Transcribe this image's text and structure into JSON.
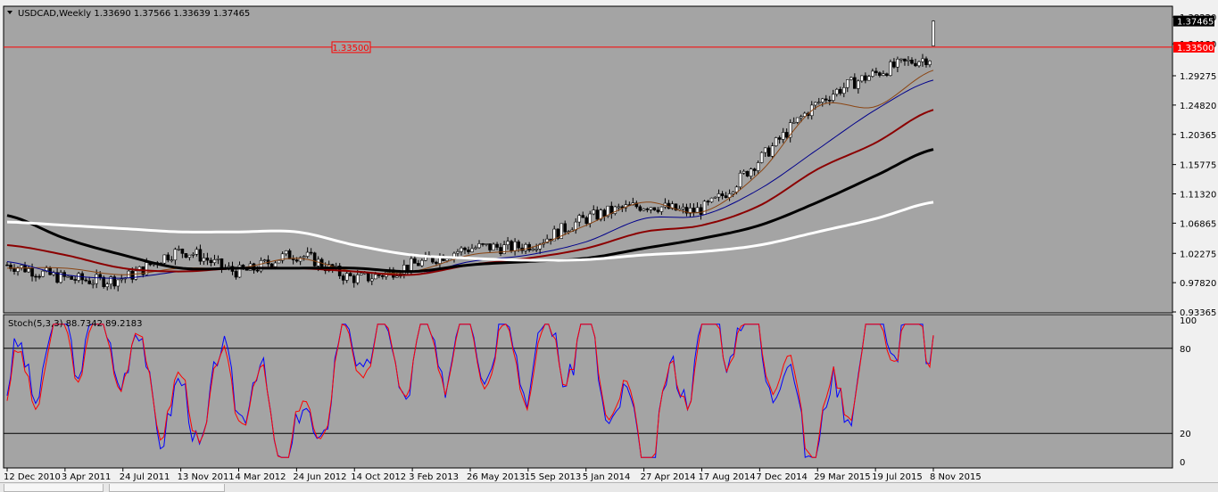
{
  "colors": {
    "background": "#a4a4a4",
    "bull_candle": "#ffffff",
    "bear_candle": "#000000",
    "horizontal_line": "#ff0000",
    "ma_thin": "#8b4513",
    "ma_blue": "#00008b",
    "ma_darkred": "#8b0000",
    "ma_black": "#000000",
    "ma_white": "#ffffff",
    "stoch_main": "#0000ff",
    "stoch_signal": "#ff0000"
  },
  "price_header": "USDCAD,Weekly  1.33690 1.37566 1.33639 1.37465",
  "price_axis": {
    "ticks": [
      "1.38220",
      "1.34130",
      "1.29275",
      "1.24820",
      "1.20365",
      "1.15775",
      "1.11320",
      "1.06865",
      "1.02275",
      "0.97820",
      "0.93365"
    ],
    "current_price_label": "1.37465",
    "hline_label": "1.33500",
    "hline_axis_label": "1.33500"
  },
  "stoch_header": "Stoch(5,3,3) 88.7342 89.2183",
  "stoch_axis": {
    "ticks": [
      "100",
      "80",
      "20",
      "0"
    ]
  },
  "time_axis": {
    "ticks": [
      "12 Dec 2010",
      "3 Apr 2011",
      "24 Jul 2011",
      "13 Nov 2011",
      "4 Mar 2012",
      "24 Jun 2012",
      "14 Oct 2012",
      "3 Feb 2013",
      "26 May 2013",
      "15 Sep 2013",
      "5 Jan 2014",
      "27 Apr 2014",
      "17 Aug 2014",
      "7 Dec 2014",
      "29 Mar 2015",
      "19 Jul 2015",
      "8 Nov 2015"
    ]
  },
  "chart_data": [
    {
      "type": "candlestick",
      "symbol": "USDCAD",
      "timeframe": "Weekly",
      "last_bar": {
        "open": 1.3369,
        "high": 1.37566,
        "low": 1.33639,
        "close": 1.37465
      },
      "ylim": [
        0.9336,
        1.3822
      ],
      "horizontal_line": 1.335,
      "x_dates": [
        "12 Dec 2010",
        "3 Apr 2011",
        "24 Jul 2011",
        "13 Nov 2011",
        "4 Mar 2012",
        "24 Jun 2012",
        "14 Oct 2012",
        "3 Feb 2013",
        "26 May 2013",
        "15 Sep 2013",
        "5 Jan 2014",
        "27 Apr 2014",
        "17 Aug 2014",
        "7 Dec 2014",
        "29 Mar 2015",
        "19 Jul 2015",
        "8 Nov 2015"
      ],
      "close_at_ticks": [
        1.005,
        0.985,
        0.985,
        1.025,
        0.995,
        1.02,
        0.985,
        1.005,
        1.03,
        1.035,
        1.075,
        1.095,
        1.09,
        1.165,
        1.25,
        1.295,
        1.32
      ],
      "moving_averages": [
        {
          "color": "#8b4513",
          "values": [
            1.0,
            1.0,
            0.99,
            1.0,
            1.0,
            1.015,
            0.995,
            0.995,
            1.02,
            1.03,
            1.065,
            1.1,
            1.085,
            1.145,
            1.245,
            1.245,
            1.3
          ]
        },
        {
          "color": "#00008b",
          "values": [
            1.01,
            0.99,
            0.985,
            0.995,
            1.0,
            1.0,
            0.995,
            0.99,
            1.01,
            1.02,
            1.04,
            1.075,
            1.08,
            1.12,
            1.18,
            1.24,
            1.285
          ]
        },
        {
          "color": "#8b0000",
          "values": [
            1.035,
            1.02,
            1.0,
            0.995,
            1.0,
            1.0,
            0.995,
            0.99,
            1.005,
            1.015,
            1.03,
            1.055,
            1.065,
            1.095,
            1.15,
            1.19,
            1.24
          ]
        },
        {
          "color": "#000000",
          "values": [
            1.08,
            1.045,
            1.02,
            1.0,
            1.0,
            1.0,
            1.0,
            0.995,
            1.005,
            1.01,
            1.015,
            1.03,
            1.045,
            1.065,
            1.1,
            1.14,
            1.18
          ]
        },
        {
          "color": "#ffffff",
          "values": [
            1.07,
            1.065,
            1.06,
            1.055,
            1.055,
            1.055,
            1.035,
            1.02,
            1.015,
            1.012,
            1.013,
            1.02,
            1.025,
            1.035,
            1.055,
            1.075,
            1.1
          ]
        }
      ]
    },
    {
      "type": "line",
      "title": "Stoch(5,3,3)",
      "ylim": [
        0,
        100
      ],
      "levels": [
        80,
        20
      ],
      "last_values": [
        88.7342,
        89.2183
      ],
      "x": [
        "12 Dec 2010",
        "3 Apr 2011",
        "24 Jul 2011",
        "13 Nov 2011",
        "4 Mar 2012",
        "24 Jun 2012",
        "14 Oct 2012",
        "3 Feb 2013",
        "26 May 2013",
        "15 Sep 2013",
        "5 Jan 2014",
        "27 Apr 2014",
        "17 Aug 2014",
        "7 Dec 2014",
        "29 Mar 2015",
        "19 Jul 2015",
        "8 Nov 2015"
      ],
      "series": [
        {
          "values": [
            50,
            90,
            80,
            30,
            60,
            10,
            85,
            70,
            90,
            75,
            80,
            10,
            90,
            85,
            20,
            95,
            90
          ]
        },
        {
          "values": [
            45,
            85,
            78,
            35,
            55,
            15,
            80,
            72,
            85,
            70,
            82,
            15,
            85,
            88,
            25,
            92,
            89
          ]
        }
      ]
    }
  ]
}
